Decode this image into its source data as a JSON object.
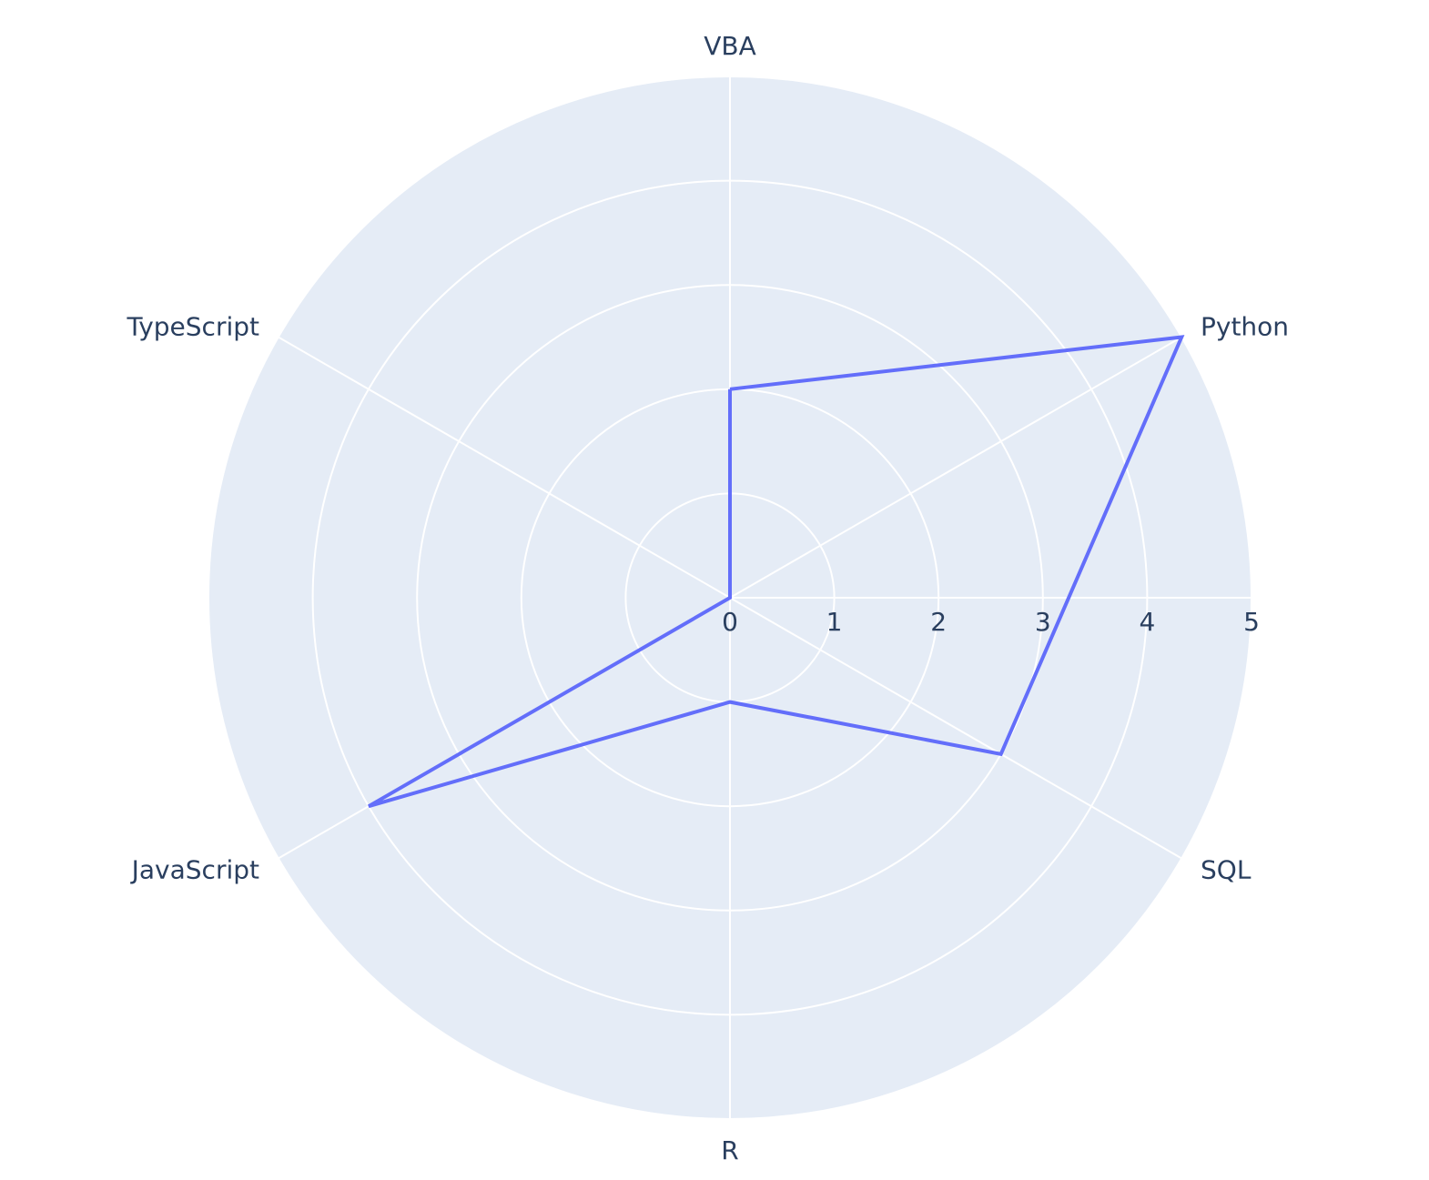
{
  "chart_data": {
    "type": "radar",
    "title": "",
    "categories": [
      "VBA",
      "Python",
      "SQL",
      "R",
      "JavaScript",
      "TypeScript"
    ],
    "series": [
      {
        "values": [
          2,
          5,
          3,
          1,
          4,
          0
        ],
        "color": "#636efa"
      }
    ],
    "radial_range": [
      0,
      5
    ],
    "radial_ticks": [
      "0",
      "1",
      "2",
      "3",
      "4",
      "5"
    ],
    "grid": true,
    "background_color": "#e5ecf6",
    "grid_color": "#ffffff",
    "text_color": "#2a3f5f"
  }
}
